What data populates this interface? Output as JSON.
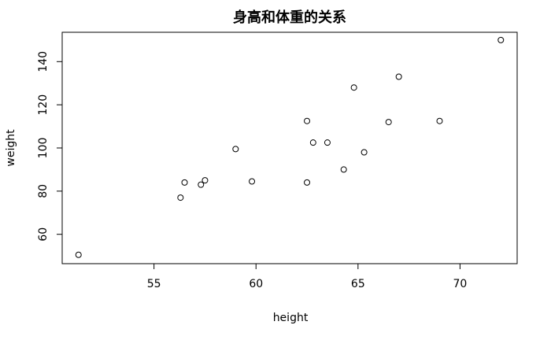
{
  "chart_data": {
    "type": "scatter",
    "title": "身高和体重的关系",
    "xlabel": "height",
    "ylabel": "weight",
    "xlim": [
      50.5,
      72.8
    ],
    "ylim": [
      46.4,
      153.6
    ],
    "xticks": [
      55,
      60,
      65,
      70
    ],
    "yticks": [
      60,
      80,
      100,
      120,
      140
    ],
    "grid": false,
    "legend": "none",
    "x": [
      51.3,
      56.3,
      56.5,
      57.3,
      57.5,
      59.0,
      59.8,
      62.5,
      62.5,
      62.8,
      63.5,
      64.3,
      64.8,
      65.3,
      66.5,
      67.0,
      69.0,
      72.0
    ],
    "y": [
      50.5,
      77.0,
      84.0,
      83.0,
      85.0,
      99.5,
      84.5,
      84.0,
      112.5,
      102.5,
      102.5,
      90.0,
      128.0,
      98.0,
      112.0,
      133.0,
      112.5,
      150.0
    ]
  }
}
